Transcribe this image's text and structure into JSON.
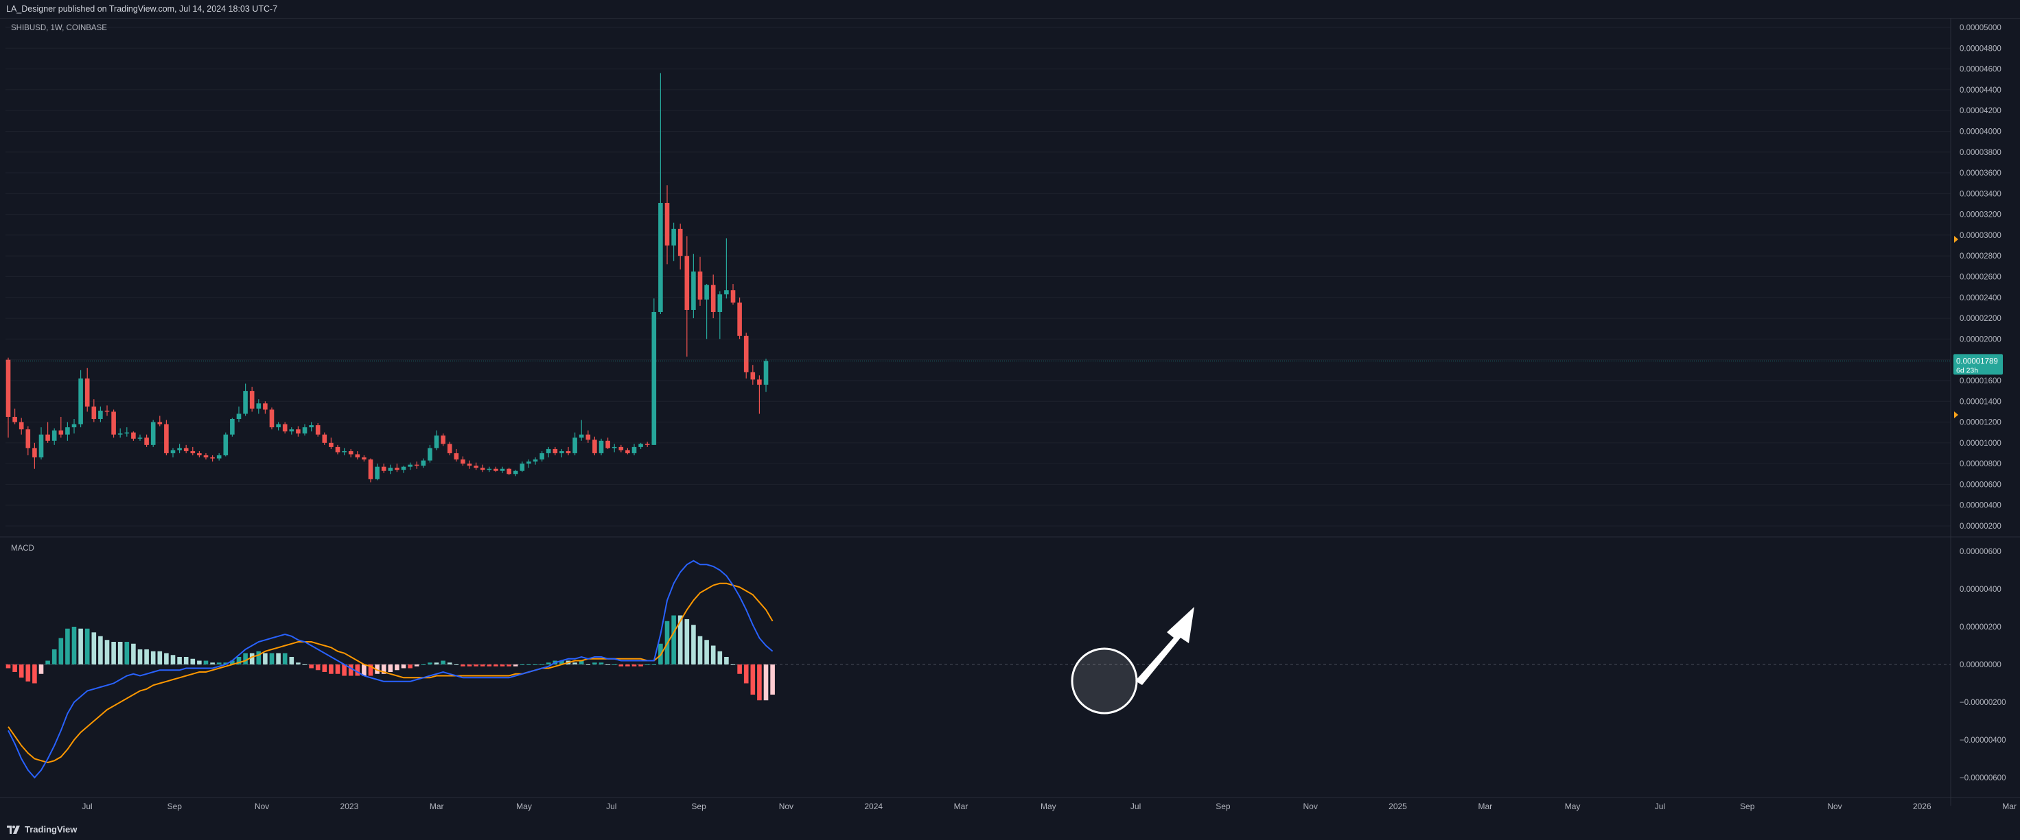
{
  "header": {
    "publisher": "LA_Designer published on TradingView.com, Jul 14, 2024 18:03 UTC-7"
  },
  "footer": {
    "brand": "TradingView"
  },
  "colors": {
    "background": "#131722",
    "grid": "#1e222d",
    "up": "#26a69a",
    "down": "#ef5350",
    "hist_up_strong": "#26a69a",
    "hist_up_weak": "#b2dfdb",
    "hist_down_strong": "#ff5252",
    "hist_down_weak": "#ffcdd2",
    "macd_line": "#2962ff",
    "signal_line": "#ff9800",
    "price_badge": "#26a69a",
    "arrow_marker": "#f7a21b"
  },
  "chart_data": [
    {
      "type": "candlestick",
      "title": "SHIBUSD, 1W, COINBASE",
      "ylim": [
        1e-06,
        5.1e-06
      ],
      "yticks": [
        "0.00000200",
        "0.00000400",
        "0.00000600",
        "0.00000800",
        "0.00001000",
        "0.00001200",
        "0.00001400",
        "0.00001600",
        "0.00001800",
        "0.00002000",
        "0.00002200",
        "0.00002400",
        "0.00002600",
        "0.00002800",
        "0.00003000",
        "0.00003200",
        "0.00003400",
        "0.00003600",
        "0.00003800",
        "0.00004000",
        "0.00004200",
        "0.00004400",
        "0.00004600",
        "0.00004800",
        "0.00005000"
      ],
      "last_price": "0.00001789",
      "countdown": "6d 23h",
      "x_labels": [
        "Jul",
        "Sep",
        "Nov",
        "2023",
        "Mar",
        "May",
        "Jul",
        "Sep",
        "Nov",
        "2024",
        "Mar",
        "May",
        "Jul",
        "Sep",
        "Nov",
        "2025",
        "Mar",
        "May",
        "Jul",
        "Sep",
        "Nov",
        "2026",
        "Mar"
      ],
      "ohlc": [
        [
          1.8e-05,
          1.82e-05,
          1.05e-05,
          1.25e-05
        ],
        [
          1.25e-05,
          1.33e-05,
          1.18e-05,
          1.2e-05
        ],
        [
          1.2e-05,
          1.24e-05,
          1.08e-05,
          1.13e-05
        ],
        [
          1.13e-05,
          1.16e-05,
          8.8e-06,
          9.5e-06
        ],
        [
          9.5e-06,
          1e-05,
          7.5e-06,
          8.6e-06
        ],
        [
          8.6e-06,
          1.15e-05,
          8.4e-06,
          1.08e-05
        ],
        [
          1.08e-05,
          1.2e-05,
          1e-05,
          1.02e-05
        ],
        [
          1.02e-05,
          1.14e-05,
          9.8e-06,
          1.12e-05
        ],
        [
          1.12e-05,
          1.25e-05,
          1.05e-05,
          1.08e-05
        ],
        [
          1.08e-05,
          1.2e-05,
          1.02e-05,
          1.15e-05
        ],
        [
          1.15e-05,
          1.23e-05,
          1.09e-05,
          1.18e-05
        ],
        [
          1.18e-05,
          1.7e-05,
          1.15e-05,
          1.62e-05
        ],
        [
          1.62e-05,
          1.72e-05,
          1.3e-05,
          1.35e-05
        ],
        [
          1.35e-05,
          1.42e-05,
          1.2e-05,
          1.23e-05
        ],
        [
          1.23e-05,
          1.35e-05,
          1.2e-05,
          1.31e-05
        ],
        [
          1.31e-05,
          1.36e-05,
          1.26e-05,
          1.3e-05
        ],
        [
          1.3e-05,
          1.32e-05,
          1.05e-05,
          1.08e-05
        ],
        [
          1.08e-05,
          1.14e-05,
          1.05e-05,
          1.09e-05
        ],
        [
          1.09e-05,
          1.15e-05,
          1.06e-05,
          1.1e-05
        ],
        [
          1.1e-05,
          1.11e-05,
          1.02e-05,
          1.04e-05
        ],
        [
          1.04e-05,
          1.08e-05,
          1.02e-05,
          1.05e-05
        ],
        [
          1.05e-05,
          1.08e-05,
          9.6e-06,
          9.8e-06
        ],
        [
          9.8e-06,
          1.22e-05,
          9.6e-06,
          1.2e-05
        ],
        [
          1.2e-05,
          1.26e-05,
          1.16e-05,
          1.18e-05
        ],
        [
          1.18e-05,
          1.22e-05,
          8.8e-06,
          9e-06
        ],
        [
          9e-06,
          9.5e-06,
          8.6e-06,
          9.3e-06
        ],
        [
          9.3e-06,
          9.9e-06,
          9e-06,
          9.5e-06
        ],
        [
          9.5e-06,
          9.8e-06,
          9e-06,
          9.2e-06
        ],
        [
          9.2e-06,
          9.6e-06,
          8.8e-06,
          9e-06
        ],
        [
          9e-06,
          9.2e-06,
          8.6e-06,
          8.8e-06
        ],
        [
          8.8e-06,
          9e-06,
          8.4e-06,
          8.6e-06
        ],
        [
          8.6e-06,
          8.8e-06,
          8.2e-06,
          8.5e-06
        ],
        [
          8.5e-06,
          9e-06,
          8.3e-06,
          8.8e-06
        ],
        [
          8.8e-06,
          1.1e-05,
          8.7e-06,
          1.08e-05
        ],
        [
          1.08e-05,
          1.24e-05,
          1.06e-05,
          1.23e-05
        ],
        [
          1.23e-05,
          1.35e-05,
          1.2e-05,
          1.28e-05
        ],
        [
          1.28e-05,
          1.57e-05,
          1.26e-05,
          1.5e-05
        ],
        [
          1.5e-05,
          1.54e-05,
          1.3e-05,
          1.33e-05
        ],
        [
          1.33e-05,
          1.42e-05,
          1.28e-05,
          1.38e-05
        ],
        [
          1.38e-05,
          1.4e-05,
          1.28e-05,
          1.32e-05
        ],
        [
          1.32e-05,
          1.34e-05,
          1.13e-05,
          1.15e-05
        ],
        [
          1.15e-05,
          1.2e-05,
          1.12e-05,
          1.18e-05
        ],
        [
          1.18e-05,
          1.2e-05,
          1.09e-05,
          1.11e-05
        ],
        [
          1.11e-05,
          1.15e-05,
          1.08e-05,
          1.13e-05
        ],
        [
          1.13e-05,
          1.16e-05,
          1.06e-05,
          1.09e-05
        ],
        [
          1.09e-05,
          1.18e-05,
          1.07e-05,
          1.15e-05
        ],
        [
          1.15e-05,
          1.2e-05,
          1.11e-05,
          1.17e-05
        ],
        [
          1.17e-05,
          1.19e-05,
          1.06e-05,
          1.08e-05
        ],
        [
          1.08e-05,
          1.1e-05,
          9.8e-06,
          1e-05
        ],
        [
          1e-05,
          1.05e-05,
          9.4e-06,
          9.6e-06
        ],
        [
          9.6e-06,
          9.8e-06,
          8.9e-06,
          9.1e-06
        ],
        [
          9.1e-06,
          9.5e-06,
          8.8e-06,
          9.2e-06
        ],
        [
          9.2e-06,
          9.4e-06,
          8.6e-06,
          8.9e-06
        ],
        [
          8.9e-06,
          9.2e-06,
          8.4e-06,
          8.6e-06
        ],
        [
          8.6e-06,
          8.8e-06,
          8.2e-06,
          8.4e-06
        ],
        [
          8.4e-06,
          8.5e-06,
          6.2e-06,
          6.5e-06
        ],
        [
          6.5e-06,
          8e-06,
          6.4e-06,
          7.7e-06
        ],
        [
          7.7e-06,
          8e-06,
          7.1e-06,
          7.3e-06
        ],
        [
          7.3e-06,
          7.9e-06,
          7e-06,
          7.6e-06
        ],
        [
          7.6e-06,
          8e-06,
          7.2e-06,
          7.4e-06
        ],
        [
          7.4e-06,
          7.8e-06,
          7.1e-06,
          7.7e-06
        ],
        [
          7.7e-06,
          8.1e-06,
          7.4e-06,
          7.9e-06
        ],
        [
          7.9e-06,
          8.2e-06,
          7.5e-06,
          7.8e-06
        ],
        [
          7.8e-06,
          8.5e-06,
          7.6e-06,
          8.3e-06
        ],
        [
          8.3e-06,
          9.8e-06,
          8.1e-06,
          9.5e-06
        ],
        [
          9.5e-06,
          1.12e-05,
          9.3e-06,
          1.07e-05
        ],
        [
          1.07e-05,
          1.09e-05,
          9.7e-06,
          9.9e-06
        ],
        [
          9.9e-06,
          1.01e-05,
          8.8e-06,
          9e-06
        ],
        [
          9e-06,
          9.4e-06,
          8.2e-06,
          8.4e-06
        ],
        [
          8.4e-06,
          8.7e-06,
          7.8e-06,
          8e-06
        ],
        [
          8e-06,
          8.3e-06,
          7.5e-06,
          7.8e-06
        ],
        [
          7.8e-06,
          8.1e-06,
          7.4e-06,
          7.6e-06
        ],
        [
          7.6e-06,
          7.9e-06,
          7.2e-06,
          7.4e-06
        ],
        [
          7.4e-06,
          7.7e-06,
          7.2e-06,
          7.5e-06
        ],
        [
          7.5e-06,
          7.7e-06,
          7.2e-06,
          7.3e-06
        ],
        [
          7.3e-06,
          7.7e-06,
          7.1e-06,
          7.5e-06
        ],
        [
          7.5e-06,
          7.6e-06,
          6.9e-06,
          7e-06
        ],
        [
          7e-06,
          7.4e-06,
          6.8e-06,
          7.3e-06
        ],
        [
          7.3e-06,
          8.2e-06,
          7.2e-06,
          8e-06
        ],
        [
          8e-06,
          8.4e-06,
          7.6e-06,
          8.2e-06
        ],
        [
          8.2e-06,
          8.6e-06,
          7.9e-06,
          8.4e-06
        ],
        [
          8.4e-06,
          9.2e-06,
          8.2e-06,
          9e-06
        ],
        [
          9e-06,
          9.6e-06,
          8.6e-06,
          9.4e-06
        ],
        [
          9.4e-06,
          9.6e-06,
          8.8e-06,
          9e-06
        ],
        [
          9e-06,
          9.4e-06,
          8.6e-06,
          9.2e-06
        ],
        [
          9.2e-06,
          9.6e-06,
          8.8e-06,
          9e-06
        ],
        [
          9e-06,
          1.1e-05,
          8.8e-06,
          1.05e-05
        ],
        [
          1.05e-05,
          1.22e-05,
          1.02e-05,
          1.08e-05
        ],
        [
          1.08e-05,
          1.12e-05,
          1e-05,
          1.03e-05
        ],
        [
          1.03e-05,
          1.06e-05,
          8.8e-06,
          9e-06
        ],
        [
          9e-06,
          1.04e-05,
          8.8e-06,
          1.02e-05
        ],
        [
          1.02e-05,
          1.05e-05,
          9.4e-06,
          9.5e-06
        ],
        [
          9.5e-06,
          9.9e-06,
          9.1e-06,
          9.6e-06
        ],
        [
          9.6e-06,
          9.8e-06,
          9.1e-06,
          9.3e-06
        ],
        [
          9.3e-06,
          9.5e-06,
          8.9e-06,
          9e-06
        ],
        [
          9e-06,
          9.9e-06,
          8.8e-06,
          9.6e-06
        ],
        [
          9.6e-06,
          1e-05,
          9.4e-06,
          9.9e-06
        ],
        [
          9.9e-06,
          1.01e-05,
          9.6e-06,
          9.8e-06
        ],
        [
          9.8e-06,
          2.39e-05,
          9.8e-06,
          2.26e-05
        ],
        [
          2.26e-05,
          4.56e-05,
          2.24e-05,
          3.31e-05
        ],
        [
          3.31e-05,
          3.48e-05,
          2.72e-05,
          2.9e-05
        ],
        [
          2.9e-05,
          3.12e-05,
          2.75e-05,
          3.06e-05
        ],
        [
          3.06e-05,
          3.11e-05,
          2.67e-05,
          2.8e-05
        ],
        [
          2.8e-05,
          2.99e-05,
          1.83e-05,
          2.28e-05
        ],
        [
          2.28e-05,
          2.82e-05,
          2.2e-05,
          2.65e-05
        ],
        [
          2.65e-05,
          2.79e-05,
          2.32e-05,
          2.38e-05
        ],
        [
          2.38e-05,
          2.53e-05,
          2e-05,
          2.52e-05
        ],
        [
          2.52e-05,
          2.62e-05,
          2.2e-05,
          2.26e-05
        ],
        [
          2.26e-05,
          2.46e-05,
          2e-05,
          2.43e-05
        ],
        [
          2.43e-05,
          2.97e-05,
          2.39e-05,
          2.47e-05
        ],
        [
          2.47e-05,
          2.53e-05,
          2.33e-05,
          2.35e-05
        ],
        [
          2.35e-05,
          2.4e-05,
          2e-05,
          2.03e-05
        ],
        [
          2.03e-05,
          2.06e-05,
          1.62e-05,
          1.68e-05
        ],
        [
          1.68e-05,
          1.75e-05,
          1.56e-05,
          1.61e-05
        ],
        [
          1.61e-05,
          1.65e-05,
          1.28e-05,
          1.56e-05
        ],
        [
          1.56e-05,
          1.81e-05,
          1.49e-05,
          1.789e-05
        ]
      ]
    },
    {
      "type": "macd",
      "title": "MACD",
      "ylim": [
        -7e-07,
        6e-07
      ],
      "yticks": [
        "−0.00000600",
        "−0.00000400",
        "−0.00000200",
        "0.00000000",
        "0.00000200",
        "0.00000400",
        "0.00000600"
      ],
      "macd": [
        -3.5e-07,
        -4.2e-07,
        -5e-07,
        -5.6e-07,
        -6e-07,
        -5.6e-07,
        -5e-07,
        -4.3e-07,
        -3.5e-07,
        -2.6e-07,
        -2e-07,
        -1.7e-07,
        -1.4e-07,
        -1.3e-07,
        -1.2e-07,
        -1.1e-07,
        -1e-07,
        -8e-08,
        -6e-08,
        -5e-08,
        -6e-08,
        -5e-08,
        -4e-08,
        -3e-08,
        -3e-08,
        -3e-08,
        -3e-08,
        -2e-08,
        -2e-08,
        -2e-08,
        -2e-08,
        -2e-08,
        -1e-08,
        0.0,
        2e-08,
        5e-08,
        8e-08,
        1e-07,
        1.2e-07,
        1.3e-07,
        1.4e-07,
        1.5e-07,
        1.6e-07,
        1.5e-07,
        1.3e-07,
        1.2e-07,
        1e-07,
        8e-08,
        6e-08,
        4e-08,
        2e-08,
        0.0,
        -2e-08,
        -4e-08,
        -6e-08,
        -7e-08,
        -8e-08,
        -9e-08,
        -9e-08,
        -9e-08,
        -9e-08,
        -9e-08,
        -8e-08,
        -7e-08,
        -6e-08,
        -5e-08,
        -4e-08,
        -5e-08,
        -6e-08,
        -7e-08,
        -7e-08,
        -7e-08,
        -7e-08,
        -7e-08,
        -7e-08,
        -7e-08,
        -7e-08,
        -6e-08,
        -5e-08,
        -4e-08,
        -3e-08,
        -2e-08,
        -1e-08,
        1e-08,
        2e-08,
        3e-08,
        3e-08,
        4e-08,
        3e-08,
        4e-08,
        4e-08,
        3e-08,
        3e-08,
        2e-08,
        2e-08,
        2e-08,
        2e-08,
        2e-08,
        2e-08,
        1.6e-07,
        3.4e-07,
        4.3e-07,
        4.9e-07,
        5.3e-07,
        5.5e-07,
        5.3e-07,
        5.3e-07,
        5.2e-07,
        5e-07,
        4.7e-07,
        4.2e-07,
        3.6e-07,
        2.9e-07,
        2.1e-07,
        1.4e-07,
        1e-07,
        7e-08
      ],
      "signal": [
        -3.3e-07,
        -3.8e-07,
        -4.3e-07,
        -4.7e-07,
        -5e-07,
        -5.1e-07,
        -5.2e-07,
        -5.1e-07,
        -4.9e-07,
        -4.5e-07,
        -4e-07,
        -3.6e-07,
        -3.3e-07,
        -3e-07,
        -2.7e-07,
        -2.4e-07,
        -2.2e-07,
        -2e-07,
        -1.8e-07,
        -1.6e-07,
        -1.4e-07,
        -1.3e-07,
        -1.1e-07,
        -1e-07,
        -9e-08,
        -8e-08,
        -7e-08,
        -6e-08,
        -5e-08,
        -4e-08,
        -4e-08,
        -3e-08,
        -2e-08,
        -1e-08,
        0.0,
        1e-08,
        2e-08,
        4e-08,
        5e-08,
        7e-08,
        8e-08,
        9e-08,
        1e-07,
        1.1e-07,
        1.2e-07,
        1.2e-07,
        1.2e-07,
        1.1e-07,
        1e-07,
        9e-08,
        7e-08,
        6e-08,
        4e-08,
        2e-08,
        0.0,
        -1e-08,
        -3e-08,
        -4e-08,
        -5e-08,
        -6e-08,
        -7e-08,
        -7e-08,
        -7e-08,
        -7e-08,
        -7e-08,
        -6e-08,
        -6e-08,
        -6e-08,
        -6e-08,
        -6e-08,
        -6e-08,
        -6e-08,
        -6e-08,
        -6e-08,
        -6e-08,
        -6e-08,
        -6e-08,
        -5e-08,
        -5e-08,
        -4e-08,
        -3e-08,
        -2e-08,
        -2e-08,
        -1e-08,
        0.0,
        1e-08,
        2e-08,
        2e-08,
        3e-08,
        3e-08,
        3e-08,
        3e-08,
        3e-08,
        3e-08,
        3e-08,
        3e-08,
        3e-08,
        2e-08,
        2e-08,
        5e-08,
        1.1e-07,
        1.7e-07,
        2.3e-07,
        2.9e-07,
        3.4e-07,
        3.8e-07,
        4e-07,
        4.2e-07,
        4.3e-07,
        4.3e-07,
        4.2e-07,
        4.1e-07,
        3.9e-07,
        3.7e-07,
        3.3e-07,
        2.9e-07,
        2.3e-07
      ],
      "histogram_labels": [
        "0.00000000"
      ]
    }
  ],
  "annotations": {
    "circle_note": "circle around latest histogram bars",
    "arrow_note": "up arrow"
  }
}
